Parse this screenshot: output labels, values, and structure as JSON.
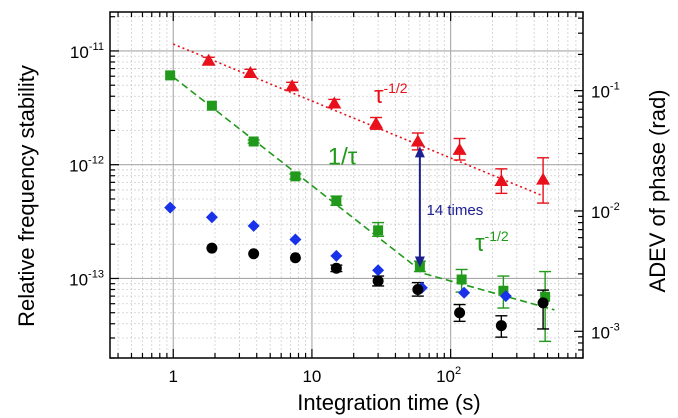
{
  "chart_data": {
    "type": "scatter",
    "xlabel": "Integration time (s)",
    "ylabel": "Relative frequency stability",
    "y2label": "ADEV of phase (rad)",
    "xscale": "log",
    "yscale": "log",
    "y2scale": "log",
    "xlim": [
      0.35,
      900
    ],
    "ylim": [
      2e-14,
      2.2e-11
    ],
    "y2lim": [
      0.0006,
      0.45
    ],
    "xticks": [
      {
        "value": 1,
        "label": "1"
      },
      {
        "value": 10,
        "label": "10"
      },
      {
        "value": 100,
        "base": "10",
        "exp": "2"
      }
    ],
    "yticks": [
      {
        "value": 1e-13,
        "base": "10",
        "exp": "-13"
      },
      {
        "value": 1e-12,
        "base": "10",
        "exp": "-12"
      },
      {
        "value": 1e-11,
        "base": "10",
        "exp": "-11"
      }
    ],
    "y2ticks": [
      {
        "value": 0.001,
        "base": "10",
        "exp": "-3"
      },
      {
        "value": 0.01,
        "base": "10",
        "exp": "-2"
      },
      {
        "value": 0.1,
        "base": "10",
        "exp": "-1"
      }
    ],
    "grid": true,
    "series": [
      {
        "color": "#e8101a",
        "marker": "triangle",
        "axis": "left",
        "x": [
          1.8,
          3.6,
          7.2,
          14.5,
          29,
          58,
          116,
          232,
          464
        ],
        "y": [
          8.2e-12,
          6.4e-12,
          4.9e-12,
          3.45e-12,
          2.3e-12,
          1.6e-12,
          1.35e-12,
          7.2e-13,
          7.4e-13
        ],
        "yerr_low": [
          7.6e-12,
          5.9e-12,
          4.5e-12,
          3.2e-12,
          2.05e-12,
          1.35e-12,
          1.1e-12,
          5.6e-13,
          4.6e-13
        ],
        "yerr_high": [
          8.8e-12,
          6.9e-12,
          5.3e-12,
          3.75e-12,
          2.6e-12,
          1.9e-12,
          1.7e-12,
          9.2e-13,
          1.15e-12
        ]
      },
      {
        "color": "#219a1b",
        "marker": "square",
        "axis": "left",
        "x": [
          0.95,
          1.9,
          3.8,
          7.6,
          15,
          30,
          60,
          120,
          240,
          480
        ],
        "y": [
          6.1e-12,
          3.3e-12,
          1.6e-12,
          7.9e-13,
          4.8e-13,
          2.65e-13,
          1.28e-13,
          9.8e-14,
          7.8e-14,
          6.9e-14
        ],
        "yerr_low": [
          6.1e-12,
          3.3e-12,
          1.55e-12,
          7.5e-13,
          4.4e-13,
          2.35e-13,
          1.15e-13,
          7.6e-14,
          5.5e-14,
          2.8e-14
        ],
        "yerr_high": [
          6.1e-12,
          3.3e-12,
          1.65e-12,
          8.3e-13,
          5.3e-13,
          3.1e-13,
          1.42e-13,
          1.2e-13,
          1.05e-13,
          1.15e-13
        ]
      },
      {
        "color": "#1732e8",
        "marker": "diamond",
        "axis": "left",
        "x": [
          0.95,
          1.9,
          3.8,
          7.6,
          15,
          30,
          62,
          125,
          250
        ],
        "y": [
          4.2e-13,
          3.45e-13,
          2.9e-13,
          2.2e-13,
          1.58e-13,
          1.18e-13,
          8.3e-14,
          7.5e-14,
          7e-14
        ]
      },
      {
        "color": "#000000",
        "marker": "circle",
        "axis": "left",
        "x": [
          1.9,
          3.8,
          7.6,
          15,
          30,
          58,
          116,
          232,
          464
        ],
        "y": [
          1.85e-13,
          1.65e-13,
          1.52e-13,
          1.23e-13,
          9.5e-14,
          8e-14,
          5e-14,
          3.85e-14,
          6.1e-14
        ],
        "yerr_low": [
          1.85e-13,
          1.65e-13,
          1.52e-13,
          1.15e-13,
          8.6e-14,
          7e-14,
          4.2e-14,
          3.05e-14,
          3.6e-14
        ],
        "yerr_high": [
          1.85e-13,
          1.65e-13,
          1.52e-13,
          1.31e-13,
          1.05e-13,
          9.2e-14,
          5.9e-14,
          4.7e-14,
          7.9e-14
        ]
      }
    ],
    "fit_lines": [
      {
        "color": "#e8101a",
        "style": "dotted",
        "x": [
          1,
          450
        ],
        "y": [
          1.15e-11,
          5.4e-13
        ]
      },
      {
        "color": "#219a1b",
        "style": "dashed",
        "x": [
          1,
          65
        ],
        "y": [
          5.9e-12,
          1.1e-13
        ]
      },
      {
        "color": "#219a1b",
        "style": "dashed",
        "x": [
          65,
          560
        ],
        "y": [
          1.1e-13,
          5.3e-14
        ]
      }
    ],
    "annotations": [
      {
        "color": "#e8101a",
        "base": "τ",
        "exp": "-1/2",
        "x": 28,
        "y": 3.5e-12
      },
      {
        "color": "#219a1b",
        "base": "1/τ",
        "exp": "",
        "x": 13,
        "y": 1e-12
      },
      {
        "color": "#219a1b",
        "base": "τ",
        "exp": "-1/2",
        "x": 150,
        "y": 1.75e-13
      },
      {
        "color": "#1e2090",
        "base": "14 times",
        "exp": "",
        "x": 67,
        "y": 3.6e-13
      }
    ],
    "arrow": {
      "color": "#1e2090",
      "x": 60,
      "y_from": 1.45e-12,
      "y_to": 1.25e-13
    }
  }
}
